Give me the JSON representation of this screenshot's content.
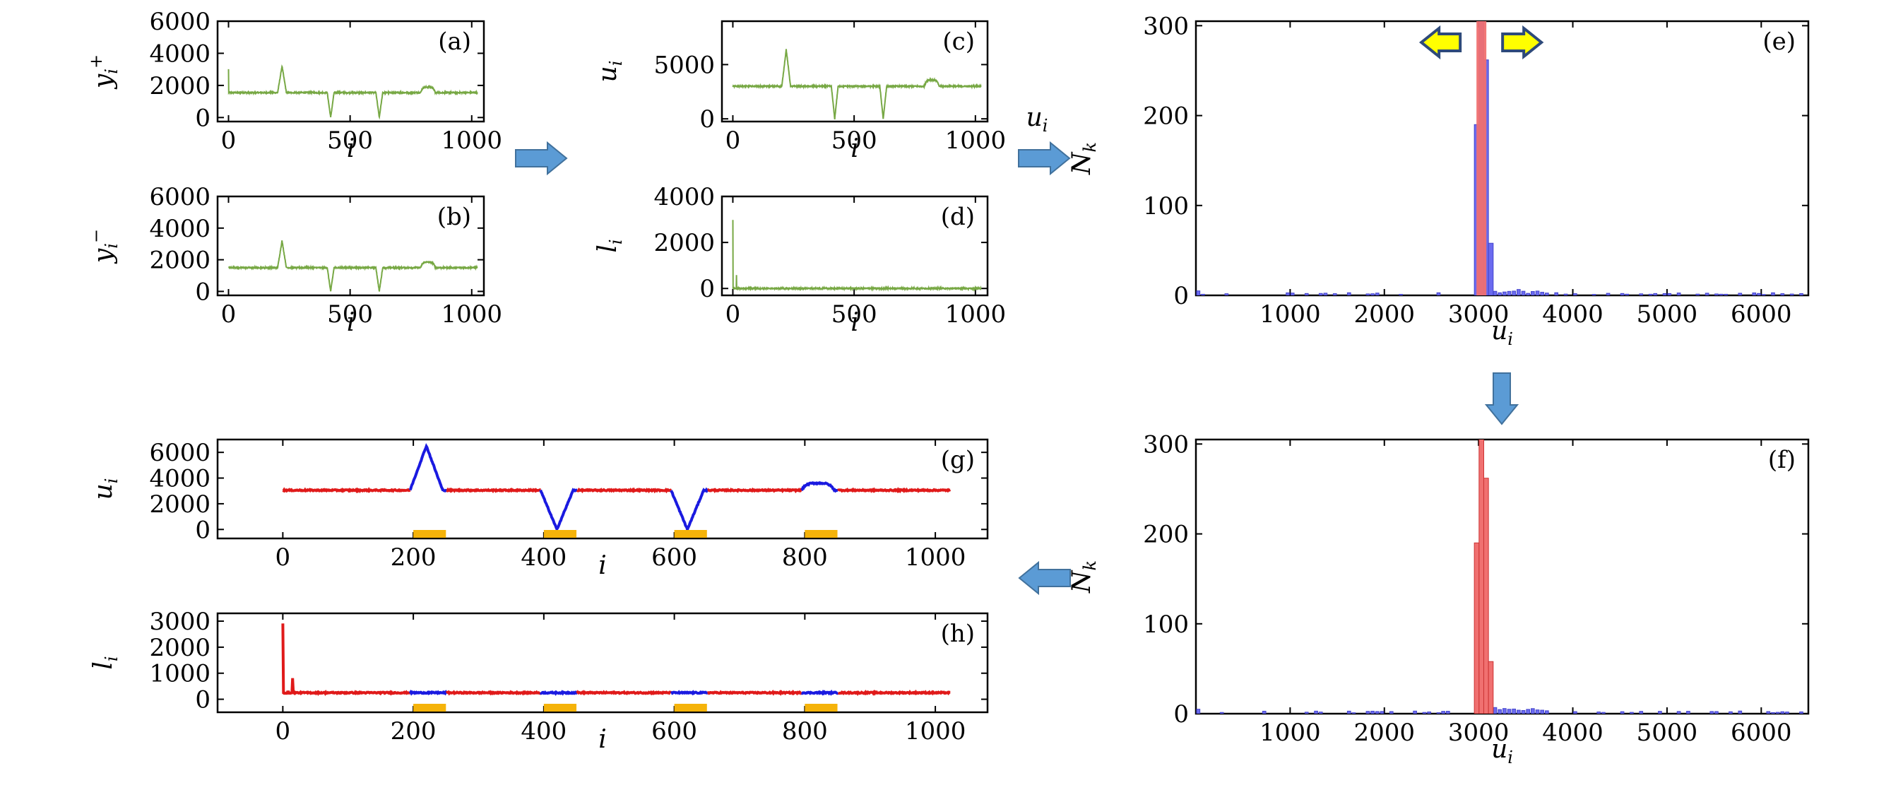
{
  "colors": {
    "green": "#77a844",
    "red": "#e01a1a",
    "blue": "#1a1ae0",
    "orange": "#f5b30a",
    "hist_blue": "#6b6bf0",
    "hist_red": "#f07070",
    "arrow_blue": "#5b9bd5",
    "arrow_yellow": "#ffff00"
  },
  "chart_data": [
    {
      "id": "a",
      "type": "line",
      "label": "(a)",
      "ylabel": "y",
      "ylabel_sup": "+",
      "ylabel_sub": "i",
      "xlabel": "i",
      "xlim": [
        -45,
        1050
      ],
      "ylim": [
        -250,
        6000
      ],
      "xticks": [
        0,
        500,
        1000
      ],
      "yticks": [
        0,
        2000,
        4000,
        6000
      ],
      "base": 1550,
      "features": [
        {
          "type": "spike",
          "x": 0,
          "value": 3000
        },
        {
          "type": "peak",
          "x": 220,
          "value": 3200,
          "width": 18
        },
        {
          "type": "valley",
          "x": 420,
          "value": 0,
          "width": 14
        },
        {
          "type": "valley",
          "x": 620,
          "value": 0,
          "width": 14
        },
        {
          "type": "bump",
          "x": 820,
          "value": 1900,
          "width": 30
        }
      ]
    },
    {
      "id": "b",
      "type": "line",
      "label": "(b)",
      "ylabel": "y",
      "ylabel_sup": "−",
      "ylabel_sub": "i",
      "xlabel": "i",
      "xlim": [
        -45,
        1050
      ],
      "ylim": [
        -250,
        6000
      ],
      "xticks": [
        0,
        500,
        1000
      ],
      "yticks": [
        0,
        2000,
        4000,
        6000
      ],
      "base": 1500,
      "features": [
        {
          "type": "peak",
          "x": 220,
          "value": 3200,
          "width": 18
        },
        {
          "type": "valley",
          "x": 420,
          "value": 0,
          "width": 14
        },
        {
          "type": "valley",
          "x": 620,
          "value": 0,
          "width": 14
        },
        {
          "type": "bump",
          "x": 820,
          "value": 1850,
          "width": 30
        }
      ]
    },
    {
      "id": "c",
      "type": "line",
      "label": "(c)",
      "ylabel": "u",
      "ylabel_sub": "i",
      "xlabel": "i",
      "xlim": [
        -45,
        1050
      ],
      "ylim": [
        -250,
        9000
      ],
      "xticks": [
        0,
        500,
        1000
      ],
      "yticks": [
        0,
        5000
      ],
      "base": 3000,
      "features": [
        {
          "type": "peak",
          "x": 220,
          "value": 6400,
          "width": 18
        },
        {
          "type": "valley",
          "x": 420,
          "value": 0,
          "width": 14
        },
        {
          "type": "valley",
          "x": 620,
          "value": 0,
          "width": 14
        },
        {
          "type": "bump",
          "x": 820,
          "value": 3600,
          "width": 30
        }
      ]
    },
    {
      "id": "d",
      "type": "line",
      "label": "(d)",
      "ylabel": "l",
      "ylabel_sub": "i",
      "xlabel": "i",
      "xlim": [
        -45,
        1050
      ],
      "ylim": [
        -300,
        4000
      ],
      "xticks": [
        0,
        500,
        1000
      ],
      "yticks": [
        0,
        2000,
        4000
      ],
      "base": 0,
      "features": [
        {
          "type": "spike",
          "x": 0,
          "value": 3000
        },
        {
          "type": "spike",
          "x": 15,
          "value": 600
        }
      ]
    },
    {
      "id": "e",
      "type": "bar",
      "label": "(e)",
      "ylabel": "N",
      "ylabel_sub": "k",
      "xlabel": "u",
      "xlabel_sub": "i",
      "xlim": [
        0,
        6500
      ],
      "ylim": [
        0,
        305
      ],
      "xticks": [
        1000,
        2000,
        3000,
        4000,
        5000,
        6000
      ],
      "yticks": [
        0,
        100,
        200,
        300
      ],
      "threshold": 3030,
      "bins": [
        {
          "x": 2980,
          "value": 190,
          "color": "blue"
        },
        {
          "x": 3030,
          "value": 350,
          "color": "blue"
        },
        {
          "x": 3080,
          "value": 262,
          "color": "blue"
        },
        {
          "x": 3130,
          "value": 58,
          "color": "blue"
        }
      ]
    },
    {
      "id": "f",
      "type": "bar",
      "label": "(f)",
      "ylabel": "N",
      "ylabel_sub": "k",
      "xlabel": "u",
      "xlabel_sub": "i",
      "xlim": [
        0,
        6500
      ],
      "ylim": [
        0,
        305
      ],
      "xticks": [
        1000,
        2000,
        3000,
        4000,
        5000,
        6000
      ],
      "yticks": [
        0,
        100,
        200,
        300
      ],
      "bins": [
        {
          "x": 2980,
          "value": 190,
          "color": "red"
        },
        {
          "x": 3030,
          "value": 350,
          "color": "red"
        },
        {
          "x": 3080,
          "value": 262,
          "color": "red"
        },
        {
          "x": 3130,
          "value": 58,
          "color": "red"
        }
      ]
    },
    {
      "id": "g",
      "type": "line",
      "label": "(g)",
      "ylabel": "u",
      "ylabel_sub": "i",
      "xlabel": "i",
      "xlim": [
        -100,
        1080
      ],
      "ylim": [
        -700,
        7000
      ],
      "xticks": [
        0,
        200,
        400,
        600,
        800,
        1000
      ],
      "yticks": [
        0,
        2000,
        4000,
        6000
      ],
      "base": 3050,
      "features": [
        {
          "type": "peak",
          "x": 220,
          "value": 6500,
          "width": 25
        },
        {
          "type": "valley",
          "x": 420,
          "value": 0,
          "width": 25
        },
        {
          "type": "valley",
          "x": 620,
          "value": 0,
          "width": 25
        },
        {
          "type": "bump",
          "x": 820,
          "value": 3600,
          "width": 25
        }
      ],
      "blue_segments": [
        [
          195,
          250
        ],
        [
          395,
          450
        ],
        [
          595,
          650
        ],
        [
          795,
          850
        ]
      ],
      "marker_intervals": [
        [
          200,
          250
        ],
        [
          400,
          450
        ],
        [
          600,
          650
        ],
        [
          800,
          850
        ]
      ]
    },
    {
      "id": "h",
      "type": "line",
      "label": "(h)",
      "ylabel": "l",
      "ylabel_sub": "i",
      "xlabel": "i",
      "xlim": [
        -100,
        1080
      ],
      "ylim": [
        -500,
        3300
      ],
      "xticks": [
        0,
        200,
        400,
        600,
        800,
        1000
      ],
      "yticks": [
        0,
        1000,
        2000,
        3000
      ],
      "base": 250,
      "features": [
        {
          "type": "spike",
          "x": 0,
          "value": 2900
        },
        {
          "type": "spike",
          "x": 15,
          "value": 800
        }
      ],
      "blue_segments": [
        [
          195,
          250
        ],
        [
          395,
          450
        ],
        [
          595,
          650
        ],
        [
          795,
          850
        ]
      ],
      "marker_intervals": [
        [
          200,
          250
        ],
        [
          400,
          450
        ],
        [
          600,
          650
        ],
        [
          800,
          850
        ]
      ]
    }
  ],
  "flow_arrow_labels": {
    "cd_to_e": "u",
    "cd_to_e_sub": "i"
  }
}
